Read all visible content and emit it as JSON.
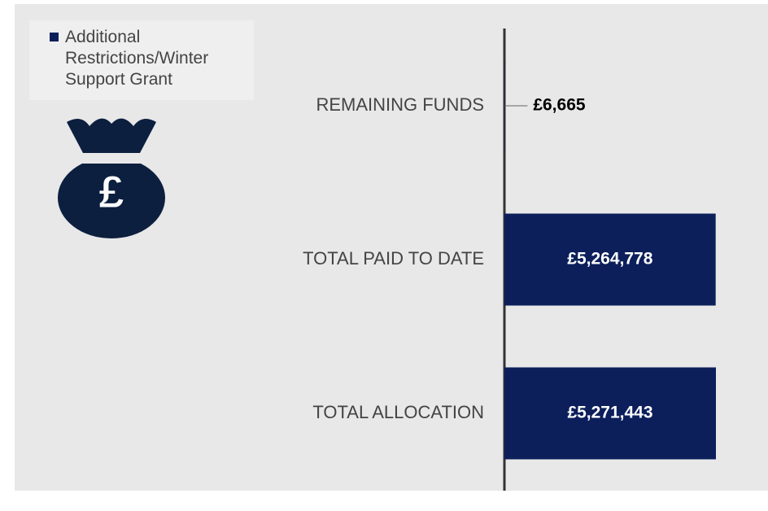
{
  "chart_data": {
    "type": "bar",
    "orientation": "horizontal",
    "categories": [
      "REMAINING FUNDS",
      "TOTAL PAID TO DATE",
      "TOTAL ALLOCATION"
    ],
    "series": [
      {
        "name": "Additional Restrictions/Winter Support Grant",
        "color": "#0c1f5b",
        "values": [
          6665,
          5264778,
          5271443
        ],
        "value_labels": [
          "£6,665",
          "£5,264,778",
          "£5,271,443"
        ]
      }
    ],
    "legend": "top-left"
  }
}
